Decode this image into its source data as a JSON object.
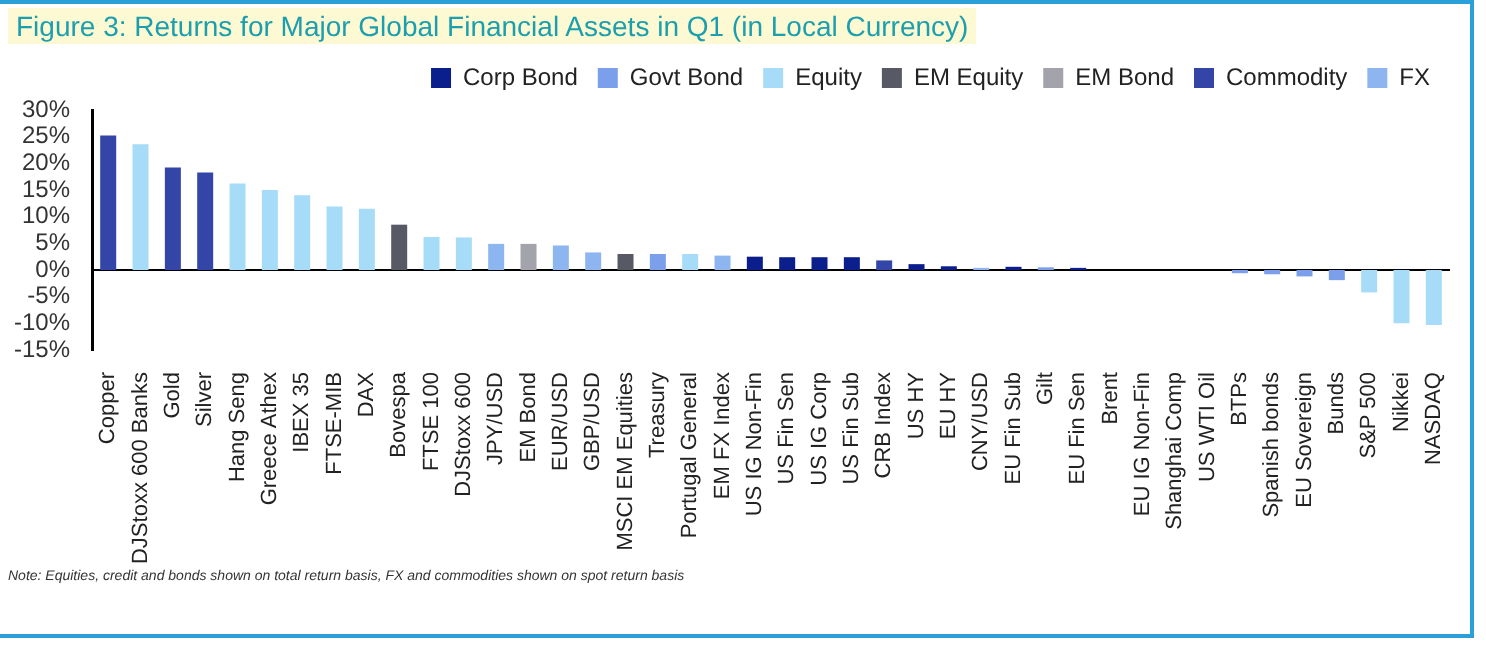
{
  "chart_data": {
    "type": "bar",
    "title": "Figure 3: Returns for Major Global Financial Assets in Q1 (in Local Currency)",
    "annotations": [
      "Note: Equities, credit and bonds shown on total return basis, FX and commodities shown on spot return basis"
    ],
    "categories": [
      "Copper",
      "DJStoxx 600 Banks",
      "Gold",
      "Silver",
      "Hang Seng",
      "Greece Athex",
      "IBEX 35",
      "FTSE-MIB",
      "DAX",
      "Bovespa",
      "FTSE 100",
      "DJStoxx 600",
      "JPY/USD",
      "EM Bond",
      "EUR/USD",
      "GBP/USD",
      "MSCI EM Equities",
      "Treasury",
      "Portugal General",
      "EM FX Index",
      "US IG Non-Fin",
      "US Fin Sen",
      "US IG Corp",
      "US Fin Sub",
      "CRB Index",
      "US HY",
      "EU HY",
      "CNY/USD",
      "EU Fin Sub",
      "Gilt",
      "EU Fin Sen",
      "Brent",
      "EU IG Non-Fin",
      "Shanghai Comp",
      "US WTI Oil",
      "BTPs",
      "Spanish bonds",
      "EU Sovereign",
      "Bunds",
      "S&P 500",
      "Nikkei",
      "NASDAQ"
    ],
    "series": [
      {
        "name": "Corp Bond",
        "color": "#0b1f8c",
        "values": [
          null,
          null,
          null,
          null,
          null,
          null,
          null,
          null,
          null,
          null,
          null,
          null,
          null,
          null,
          null,
          null,
          null,
          null,
          null,
          null,
          2.5,
          2.4,
          2.4,
          2.4,
          null,
          1.1,
          0.7,
          null,
          0.6,
          null,
          0.4,
          null,
          0,
          null,
          null,
          null,
          null,
          null,
          null,
          null,
          null,
          null
        ]
      },
      {
        "name": "Govt Bond",
        "color": "#7b9fea",
        "values": [
          null,
          null,
          null,
          null,
          null,
          null,
          null,
          null,
          null,
          null,
          null,
          null,
          null,
          null,
          null,
          null,
          null,
          3.0,
          null,
          null,
          null,
          null,
          null,
          null,
          null,
          null,
          null,
          null,
          null,
          0.5,
          null,
          null,
          null,
          null,
          null,
          -0.6,
          -0.8,
          -1.2,
          -1.9,
          null,
          null,
          null
        ]
      },
      {
        "name": "Equity",
        "color": "#a6dcf7",
        "values": [
          null,
          23.6,
          null,
          null,
          16.2,
          15.0,
          14.0,
          11.9,
          11.5,
          null,
          6.2,
          6.1,
          null,
          null,
          null,
          null,
          null,
          null,
          3.0,
          null,
          null,
          null,
          null,
          null,
          null,
          null,
          null,
          null,
          null,
          null,
          null,
          null,
          null,
          0,
          null,
          null,
          null,
          null,
          null,
          -4.2,
          -10.0,
          -10.3
        ]
      },
      {
        "name": "EM Equity",
        "color": "#575a64",
        "values": [
          null,
          null,
          null,
          null,
          null,
          null,
          null,
          null,
          null,
          8.5,
          null,
          null,
          null,
          null,
          null,
          null,
          3.0,
          null,
          null,
          null,
          null,
          null,
          null,
          null,
          null,
          null,
          null,
          null,
          null,
          null,
          null,
          null,
          null,
          null,
          null,
          null,
          null,
          null,
          null,
          null,
          null,
          null
        ]
      },
      {
        "name": "EM Bond",
        "color": "#a3a3ab",
        "values": [
          null,
          null,
          null,
          null,
          null,
          null,
          null,
          null,
          null,
          null,
          null,
          null,
          null,
          4.9,
          null,
          null,
          null,
          null,
          null,
          null,
          null,
          null,
          null,
          null,
          null,
          null,
          null,
          null,
          null,
          null,
          null,
          null,
          null,
          null,
          null,
          null,
          null,
          null,
          null,
          null,
          null,
          null
        ]
      },
      {
        "name": "Commodity",
        "color": "#3445a8",
        "values": [
          25.2,
          null,
          19.2,
          18.3,
          null,
          null,
          null,
          null,
          null,
          null,
          null,
          null,
          null,
          null,
          null,
          null,
          null,
          null,
          null,
          null,
          null,
          null,
          null,
          null,
          1.8,
          null,
          null,
          null,
          null,
          null,
          null,
          0,
          null,
          null,
          0,
          null,
          null,
          null,
          null,
          null,
          null,
          null
        ]
      },
      {
        "name": "FX",
        "color": "#8db6f0",
        "values": [
          null,
          null,
          null,
          null,
          null,
          null,
          null,
          null,
          null,
          null,
          null,
          null,
          4.9,
          null,
          4.6,
          3.3,
          null,
          null,
          null,
          2.7,
          null,
          null,
          null,
          null,
          null,
          null,
          null,
          0.4,
          null,
          null,
          null,
          null,
          null,
          null,
          null,
          null,
          null,
          null,
          null,
          null,
          null,
          null
        ]
      }
    ],
    "ylim": [
      -15,
      30
    ],
    "yticks": [
      {
        "value": -15,
        "label": "-15%"
      },
      {
        "value": -10,
        "label": "-10%"
      },
      {
        "value": -5,
        "label": "-5%"
      },
      {
        "value": 0,
        "label": "0%"
      },
      {
        "value": 5,
        "label": "5%"
      },
      {
        "value": 10,
        "label": "10%"
      },
      {
        "value": 15,
        "label": "15%"
      },
      {
        "value": 20,
        "label": "20%"
      },
      {
        "value": 25,
        "label": "25%"
      },
      {
        "value": 30,
        "label": "30%"
      }
    ],
    "ref_lines": [
      {
        "axis": "y",
        "value": 0,
        "color": "#000000"
      }
    ],
    "grid": false,
    "legend": "top right"
  }
}
